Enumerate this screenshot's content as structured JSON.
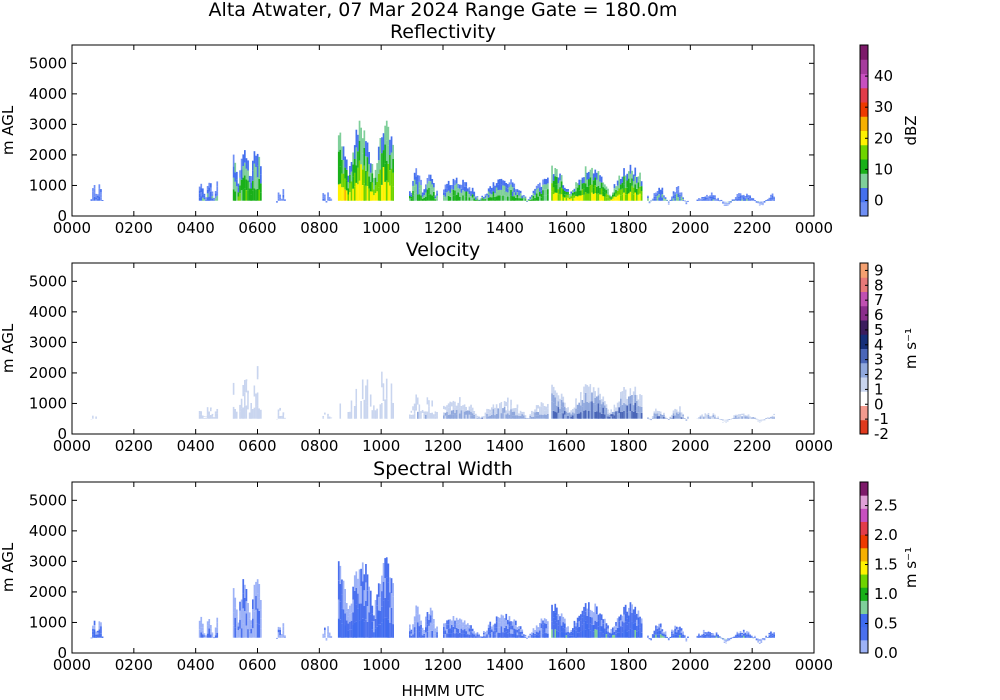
{
  "figure": {
    "suptitle": "Alta Atwater, 07 Mar 2024 Range Gate = 180.0m",
    "xlabel": "HHMM UTC"
  },
  "chart_data": [
    {
      "type": "heatmap",
      "title": "Reflectivity",
      "ylabel": "m AGL",
      "xlim": [
        0,
        2400
      ],
      "ylim": [
        0,
        5600
      ],
      "x_ticks": [
        "0000",
        "0200",
        "0400",
        "0600",
        "0800",
        "1000",
        "1200",
        "1400",
        "1600",
        "1800",
        "2000",
        "2200",
        "0000"
      ],
      "y_ticks": [
        "0",
        "1000",
        "2000",
        "3000",
        "4000",
        "5000"
      ],
      "colorbar": {
        "label": "dBZ",
        "range": [
          -5,
          50
        ],
        "ticks": [
          "0",
          "10",
          "20",
          "30",
          "40"
        ],
        "colors": [
          "#6f8ff5",
          "#4570ee",
          "#7fcf9a",
          "#19b019",
          "#6fd400",
          "#fff200",
          "#f7b000",
          "#ee3a00",
          "#e23c4a",
          "#c84fc0",
          "#a63c9d",
          "#7d1a6a"
        ]
      },
      "columns": [
        {
          "start": 60,
          "end": 100,
          "top": 1250,
          "intensity": 0.15
        },
        {
          "start": 410,
          "end": 470,
          "top": 1200,
          "intensity": 0.25
        },
        {
          "start": 520,
          "end": 610,
          "top": 2500,
          "intensity": 0.5
        },
        {
          "start": 660,
          "end": 690,
          "top": 1000,
          "intensity": 0.1
        },
        {
          "start": 810,
          "end": 840,
          "top": 900,
          "intensity": 0.15
        },
        {
          "start": 860,
          "end": 1040,
          "top": 3200,
          "intensity": 0.75
        },
        {
          "start": 1090,
          "end": 1180,
          "top": 1600,
          "intensity": 0.45
        },
        {
          "start": 1200,
          "end": 1540,
          "top": 1300,
          "intensity": 0.45
        },
        {
          "start": 1550,
          "end": 1840,
          "top": 1700,
          "intensity": 0.7
        },
        {
          "start": 1860,
          "end": 1990,
          "top": 1000,
          "intensity": 0.3
        },
        {
          "start": 2020,
          "end": 2270,
          "top": 800,
          "intensity": 0.2
        }
      ]
    },
    {
      "type": "heatmap",
      "title": "Velocity",
      "ylabel": "m AGL",
      "xlim": [
        0,
        2400
      ],
      "ylim": [
        0,
        5600
      ],
      "x_ticks": [
        "0000",
        "0200",
        "0400",
        "0600",
        "0800",
        "1000",
        "1200",
        "1400",
        "1600",
        "1800",
        "2000",
        "2200",
        "0000"
      ],
      "y_ticks": [
        "0",
        "1000",
        "2000",
        "3000",
        "4000",
        "5000"
      ],
      "colorbar": {
        "label": "m s⁻¹",
        "range": [
          -2,
          9.5
        ],
        "ticks": [
          "-2",
          "-1",
          "0",
          "1",
          "2",
          "3",
          "4",
          "5",
          "6",
          "7",
          "8",
          "9"
        ],
        "colors": [
          "#e03a1e",
          "#f39a8e",
          "#ffffff",
          "#c9d5ef",
          "#90a8dd",
          "#4a66b8",
          "#152f7a",
          "#3b1d5e",
          "#8b2e8c",
          "#c050b2",
          "#e87a7a",
          "#f5a070"
        ]
      },
      "columns": [
        {
          "start": 60,
          "end": 100,
          "top": 1250,
          "intensity": 0.12
        },
        {
          "start": 410,
          "end": 470,
          "top": 1200,
          "intensity": 0.25
        },
        {
          "start": 520,
          "end": 610,
          "top": 2500,
          "intensity": 0.22
        },
        {
          "start": 660,
          "end": 690,
          "top": 1000,
          "intensity": 0.25
        },
        {
          "start": 810,
          "end": 840,
          "top": 900,
          "intensity": 0.2
        },
        {
          "start": 860,
          "end": 1040,
          "top": 3200,
          "intensity": 0.18
        },
        {
          "start": 1090,
          "end": 1180,
          "top": 1600,
          "intensity": 0.25
        },
        {
          "start": 1200,
          "end": 1540,
          "top": 1300,
          "intensity": 0.4
        },
        {
          "start": 1550,
          "end": 1840,
          "top": 1700,
          "intensity": 0.55
        },
        {
          "start": 1860,
          "end": 1990,
          "top": 1000,
          "intensity": 0.45
        },
        {
          "start": 2020,
          "end": 2270,
          "top": 800,
          "intensity": 0.35
        }
      ]
    },
    {
      "type": "heatmap",
      "title": "Spectral Width",
      "ylabel": "m AGL",
      "xlabel": "HHMM UTC",
      "xlim": [
        0,
        2400
      ],
      "ylim": [
        0,
        5600
      ],
      "x_ticks": [
        "0000",
        "0200",
        "0400",
        "0600",
        "0800",
        "1000",
        "1200",
        "1400",
        "1600",
        "1800",
        "2000",
        "2200",
        "0000"
      ],
      "y_ticks": [
        "0",
        "1000",
        "2000",
        "3000",
        "4000",
        "5000"
      ],
      "colorbar": {
        "label": "m s⁻¹",
        "range": [
          0,
          2.9
        ],
        "ticks": [
          "0.0",
          "0.5",
          "1.0",
          "1.5",
          "2.0",
          "2.5"
        ],
        "colors": [
          "#9db2f7",
          "#4a70ee",
          "#3f6cf0",
          "#7fcf9a",
          "#19b019",
          "#6fd400",
          "#fff200",
          "#f7b000",
          "#ee3a00",
          "#e23c4a",
          "#c84fc0",
          "#e0a0d8",
          "#7d1a6a"
        ]
      },
      "columns": [
        {
          "start": 60,
          "end": 100,
          "top": 1250,
          "intensity": 0.25
        },
        {
          "start": 410,
          "end": 470,
          "top": 1200,
          "intensity": 0.1
        },
        {
          "start": 520,
          "end": 610,
          "top": 2500,
          "intensity": 0.12
        },
        {
          "start": 660,
          "end": 690,
          "top": 1000,
          "intensity": 0.1
        },
        {
          "start": 810,
          "end": 840,
          "top": 900,
          "intensity": 0.1
        },
        {
          "start": 860,
          "end": 1040,
          "top": 3200,
          "intensity": 0.25
        },
        {
          "start": 1090,
          "end": 1180,
          "top": 1600,
          "intensity": 0.15
        },
        {
          "start": 1200,
          "end": 1540,
          "top": 1300,
          "intensity": 0.2
        },
        {
          "start": 1550,
          "end": 1840,
          "top": 1700,
          "intensity": 0.3
        },
        {
          "start": 1860,
          "end": 1990,
          "top": 1000,
          "intensity": 0.3
        },
        {
          "start": 2020,
          "end": 2270,
          "top": 800,
          "intensity": 0.3
        }
      ]
    }
  ]
}
